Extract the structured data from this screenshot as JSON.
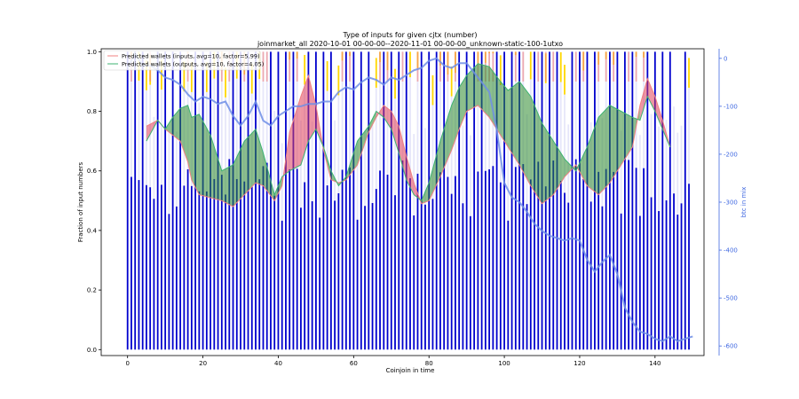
{
  "chart_data": {
    "type": "bar",
    "title": "Type of inputs for given cjtx (number)",
    "subtitle": "joinmarket_all 2020-10-01 00-00-00--2020-11-01 00-00-00_unknown-static-100-1utxo",
    "xlabel": "Coinjoin in time",
    "ylabel": "Fraction of input numbers",
    "ylabel_right": "btc in mix",
    "xlim": [
      -7,
      153
    ],
    "ylim": [
      -0.02,
      1.01
    ],
    "ylim_right": [
      -620,
      20
    ],
    "x_ticks": [
      0,
      20,
      40,
      60,
      80,
      100,
      120,
      140
    ],
    "y_ticks": [
      0.0,
      0.2,
      0.4,
      0.6,
      0.8,
      1.0
    ],
    "y_ticks_right": [
      0,
      -100,
      -200,
      -300,
      -400,
      -500,
      -600
    ],
    "n_coinjoins": 150,
    "colors": {
      "bars_fresh": "#0000cd",
      "bars_remix": "#e6e6fa",
      "bars_other": "#ffd700",
      "bars_coord": "#f08080",
      "inputs_line": "#f08080",
      "inputs_fill": "#e0405a",
      "outputs_line": "#3cb371",
      "outputs_fill": "#2e8b2e",
      "btc_line": "#6e8ee6",
      "right_axis": "#4169e1"
    },
    "legend": [
      {
        "label": "Predicted wallets (inputs, avg=10, factor=5.99)",
        "color": "#f08080"
      },
      {
        "label": "Predicted wallets (outputs, avg=10, factor=4.05)",
        "color": "#3cb371"
      }
    ],
    "legend_position": "top-left",
    "series": [
      {
        "name": "Predicted wallets (inputs, avg=10, factor=5.99)",
        "x": [
          5,
          8,
          10,
          12,
          14,
          16,
          17,
          19,
          22,
          25,
          28,
          31,
          34,
          36,
          39,
          41,
          43,
          46,
          48,
          50,
          52,
          54,
          56,
          58,
          61,
          64,
          66,
          68,
          70,
          72,
          74,
          76,
          78,
          80,
          83,
          86,
          88,
          90,
          93,
          96,
          99,
          101,
          104,
          107,
          110,
          113,
          116,
          119,
          122,
          125,
          128,
          131,
          134,
          136,
          138,
          140,
          142,
          144
        ],
        "values": [
          0.75,
          0.77,
          0.74,
          0.72,
          0.7,
          0.63,
          0.57,
          0.52,
          0.51,
          0.5,
          0.48,
          0.52,
          0.56,
          0.55,
          0.5,
          0.55,
          0.73,
          0.85,
          0.92,
          0.82,
          0.67,
          0.57,
          0.56,
          0.57,
          0.62,
          0.73,
          0.78,
          0.82,
          0.8,
          0.75,
          0.65,
          0.56,
          0.49,
          0.5,
          0.58,
          0.67,
          0.74,
          0.8,
          0.82,
          0.78,
          0.72,
          0.68,
          0.62,
          0.55,
          0.49,
          0.52,
          0.58,
          0.62,
          0.55,
          0.52,
          0.56,
          0.62,
          0.68,
          0.82,
          0.91,
          0.85,
          0.77,
          0.68
        ]
      },
      {
        "name": "Predicted wallets (outputs, avg=10, factor=4.05)",
        "x": [
          5,
          8,
          10,
          12,
          14,
          16,
          17,
          19,
          22,
          25,
          28,
          31,
          34,
          36,
          39,
          41,
          43,
          46,
          48,
          50,
          52,
          54,
          56,
          58,
          61,
          64,
          66,
          68,
          70,
          72,
          74,
          76,
          78,
          80,
          83,
          86,
          88,
          90,
          93,
          96,
          99,
          101,
          104,
          107,
          110,
          113,
          116,
          119,
          122,
          125,
          128,
          131,
          134,
          136,
          138,
          140,
          142,
          144
        ],
        "values": [
          0.7,
          0.77,
          0.74,
          0.78,
          0.81,
          0.82,
          0.78,
          0.79,
          0.72,
          0.6,
          0.62,
          0.7,
          0.74,
          0.66,
          0.52,
          0.58,
          0.6,
          0.62,
          0.7,
          0.74,
          0.68,
          0.6,
          0.55,
          0.58,
          0.7,
          0.75,
          0.8,
          0.78,
          0.74,
          0.66,
          0.57,
          0.52,
          0.5,
          0.56,
          0.7,
          0.82,
          0.88,
          0.92,
          0.96,
          0.95,
          0.9,
          0.87,
          0.9,
          0.85,
          0.76,
          0.7,
          0.64,
          0.6,
          0.68,
          0.78,
          0.82,
          0.8,
          0.78,
          0.77,
          0.85,
          0.8,
          0.74,
          0.68
        ]
      },
      {
        "name": "btc in mix",
        "axis": "right",
        "x": [
          0,
          2,
          4,
          6,
          8,
          10,
          12,
          14,
          16,
          18,
          20,
          22,
          24,
          26,
          28,
          30,
          32,
          34,
          36,
          38,
          40,
          42,
          44,
          46,
          48,
          50,
          52,
          54,
          56,
          58,
          60,
          62,
          64,
          66,
          68,
          70,
          72,
          74,
          76,
          78,
          80,
          82,
          84,
          86,
          88,
          90,
          92,
          94,
          96,
          98,
          100,
          102,
          104,
          106,
          108,
          110,
          112,
          114,
          116,
          118,
          120,
          122,
          124,
          126,
          128,
          130,
          132,
          134,
          136,
          138,
          140,
          142,
          144,
          146,
          148,
          150
        ],
        "values": [
          -20,
          10,
          -15,
          -15,
          -25,
          -40,
          -45,
          -55,
          -75,
          -90,
          -80,
          -85,
          -95,
          -90,
          -120,
          -140,
          -120,
          -90,
          -130,
          -140,
          -120,
          -110,
          -100,
          -100,
          -95,
          -95,
          -90,
          -90,
          -70,
          -60,
          -65,
          -50,
          -40,
          -45,
          -55,
          -40,
          -45,
          -35,
          -25,
          -20,
          -5,
          0,
          -15,
          -20,
          -10,
          -10,
          -30,
          -50,
          -70,
          -150,
          -260,
          -290,
          -300,
          -320,
          -345,
          -360,
          -370,
          -375,
          -380,
          -375,
          -380,
          -420,
          -445,
          -425,
          -410,
          -450,
          -520,
          -550,
          -570,
          -575,
          -585,
          -590,
          -580,
          -590,
          -585,
          -580
        ]
      }
    ]
  }
}
